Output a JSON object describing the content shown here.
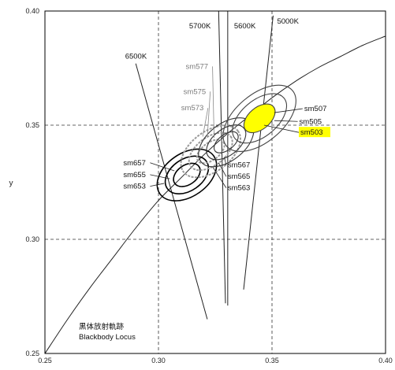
{
  "chart_data": {
    "type": "scatter",
    "title": "",
    "xlabel": "",
    "ylabel": "y",
    "xlim": [
      0.25,
      0.4
    ],
    "ylim": [
      0.25,
      0.4
    ],
    "x_ticks": [
      "0.25",
      "0.30",
      "0.35",
      "0.40"
    ],
    "y_ticks": [
      "0.25",
      "0.30",
      "0.35",
      "0.40"
    ],
    "grid": "dashed",
    "locus": {
      "label_line1": "黒体放射軌跡",
      "label_line2": "Blackbody Locus",
      "points": [
        [
          0.25,
          0.25
        ],
        [
          0.26,
          0.265
        ],
        [
          0.27,
          0.279
        ],
        [
          0.28,
          0.292
        ],
        [
          0.29,
          0.305
        ],
        [
          0.3,
          0.317
        ],
        [
          0.31,
          0.327
        ],
        [
          0.32,
          0.337
        ],
        [
          0.33,
          0.346
        ],
        [
          0.34,
          0.354
        ],
        [
          0.35,
          0.362
        ],
        [
          0.36,
          0.369
        ],
        [
          0.37,
          0.375
        ],
        [
          0.38,
          0.38
        ],
        [
          0.39,
          0.385
        ],
        [
          0.4,
          0.389
        ]
      ]
    },
    "isotherms": [
      {
        "label": "6500K",
        "from": [
          0.29,
          0.377
        ],
        "to": [
          0.3215,
          0.265
        ]
      },
      {
        "label": "5700K",
        "from": [
          0.3265,
          0.4
        ],
        "to": [
          0.3295,
          0.272
        ]
      },
      {
        "label": "5600K",
        "from": [
          0.3305,
          0.4
        ],
        "to": [
          0.3305,
          0.271
        ]
      },
      {
        "label": "5000K",
        "from": [
          0.3505,
          0.398
        ],
        "to": [
          0.3375,
          0.278
        ]
      }
    ],
    "ellipse_groups": [
      {
        "center": [
          0.3125,
          0.3282
        ],
        "angle_deg": 35,
        "color": "#000000",
        "rings": [
          {
            "name": "sm653",
            "rx": 0.0145,
            "ry": 0.0095
          },
          {
            "name": "sm655",
            "rx": 0.0105,
            "ry": 0.007
          },
          {
            "name": "sm657",
            "rx": 0.0065,
            "ry": 0.0043
          }
        ]
      },
      {
        "center": [
          0.323,
          0.3385
        ],
        "angle_deg": 37,
        "color": "#9a9a9a",
        "rings": [
          {
            "name": "sm573",
            "rx": 0.015,
            "ry": 0.0088
          },
          {
            "name": "sm575",
            "rx": 0.011,
            "ry": 0.0062
          },
          {
            "name": "sm577",
            "rx": 0.007,
            "ry": 0.0038
          }
        ]
      },
      {
        "center": [
          0.3298,
          0.3425
        ],
        "angle_deg": 38,
        "color": "#333333",
        "rings": [
          {
            "name": "sm563",
            "rx": 0.014,
            "ry": 0.0082
          },
          {
            "name": "sm565",
            "rx": 0.01,
            "ry": 0.0058
          },
          {
            "name": "sm567",
            "rx": 0.0062,
            "ry": 0.0034
          }
        ]
      },
      {
        "center": [
          0.3445,
          0.353
        ],
        "angle_deg": 40,
        "color": "#444444",
        "rings": [
          {
            "name": "sm503",
            "rx": 0.019,
            "ry": 0.0105
          },
          {
            "name": "sm505",
            "rx": 0.014,
            "ry": 0.008
          },
          {
            "name": "sm507",
            "rx": 0.008,
            "ry": 0.0048,
            "fill": "#ffff00"
          }
        ]
      }
    ],
    "labels": [
      {
        "text": "sm657",
        "at": [
          0.2845,
          0.3325
        ],
        "point": [
          0.307,
          0.33
        ],
        "color": "#111"
      },
      {
        "text": "sm655",
        "at": [
          0.2845,
          0.3273
        ],
        "point": [
          0.305,
          0.3265
        ],
        "color": "#111"
      },
      {
        "text": "sm653",
        "at": [
          0.2845,
          0.3222
        ],
        "point": [
          0.3025,
          0.3245
        ],
        "color": "#111"
      },
      {
        "text": "sm577",
        "at": [
          0.312,
          0.3747
        ],
        "point": [
          0.3245,
          0.3445
        ],
        "color": "#7a7a7a"
      },
      {
        "text": "sm575",
        "at": [
          0.311,
          0.3637
        ],
        "point": [
          0.3215,
          0.3445
        ],
        "color": "#7a7a7a"
      },
      {
        "text": "sm573",
        "at": [
          0.31,
          0.3565
        ],
        "point": [
          0.3195,
          0.345
        ],
        "color": "#7a7a7a"
      },
      {
        "text": "sm567",
        "at": [
          0.3305,
          0.3315
        ],
        "point": [
          0.329,
          0.336
        ],
        "color": "#111"
      },
      {
        "text": "sm565",
        "at": [
          0.3305,
          0.3265
        ],
        "point": [
          0.3265,
          0.3335
        ],
        "color": "#111"
      },
      {
        "text": "sm563",
        "at": [
          0.3305,
          0.3215
        ],
        "point": [
          0.324,
          0.3315
        ],
        "color": "#111"
      },
      {
        "text": "sm507",
        "at": [
          0.3642,
          0.3562
        ],
        "point": [
          0.351,
          0.3555
        ],
        "color": "#111"
      },
      {
        "text": "sm505",
        "at": [
          0.362,
          0.3506
        ],
        "point": [
          0.351,
          0.352
        ],
        "color": "#111"
      },
      {
        "text": "sm503",
        "at": [
          0.3625,
          0.3458
        ],
        "point": [
          0.3465,
          0.35
        ],
        "color": "#111",
        "highlight": "#ffff00"
      }
    ]
  }
}
